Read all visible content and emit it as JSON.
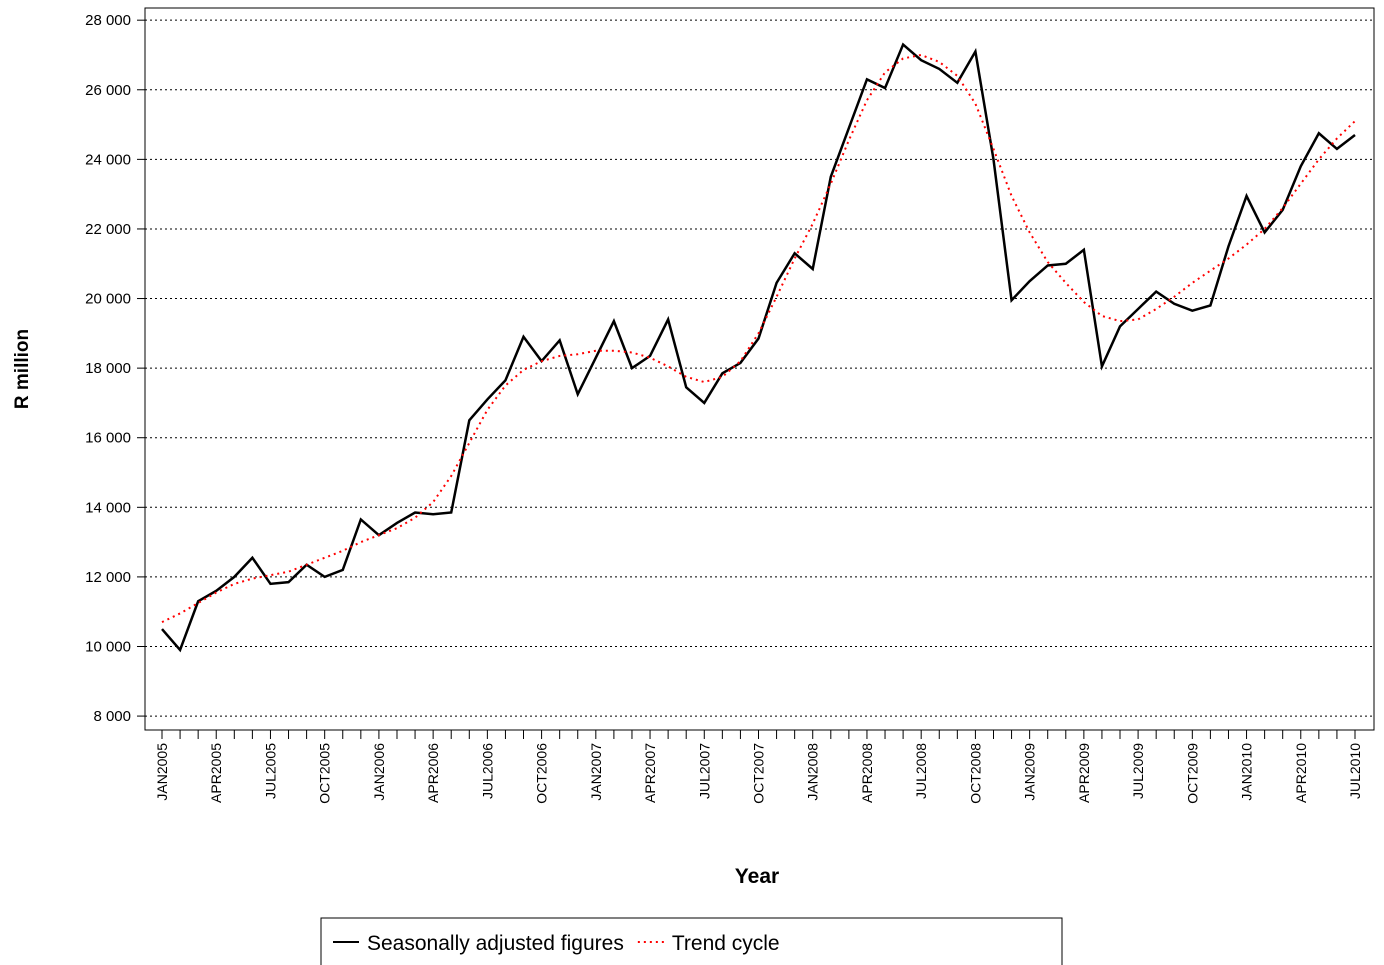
{
  "chart_data": {
    "type": "line",
    "x_label": "Year",
    "y_label": "R million",
    "categories": [
      "JAN2005",
      null,
      null,
      "APR2005",
      null,
      null,
      "JUL2005",
      null,
      null,
      "OCT2005",
      null,
      null,
      "JAN2006",
      null,
      null,
      "APR2006",
      null,
      null,
      "JUL2006",
      null,
      null,
      "OCT2006",
      null,
      null,
      "JAN2007",
      null,
      null,
      "APR2007",
      null,
      null,
      "JUL2007",
      null,
      null,
      "OCT2007",
      null,
      null,
      "JAN2008",
      null,
      null,
      "APR2008",
      null,
      null,
      "JUL2008",
      null,
      null,
      "OCT2008",
      null,
      null,
      "JAN2009",
      null,
      null,
      "APR2009",
      null,
      null,
      "JUL2009",
      null,
      null,
      "OCT2009",
      null,
      null,
      "JAN2010",
      null,
      null,
      "APR2010",
      null,
      null,
      "JUL2010"
    ],
    "series": [
      {
        "name": "Seasonally adjusted figures",
        "color": "#000000",
        "line_style": "solid",
        "values": [
          10500,
          9900,
          11300,
          11600,
          12000,
          12550,
          11800,
          11850,
          12350,
          12000,
          12200,
          13650,
          13200,
          13550,
          13850,
          13800,
          13850,
          16500,
          17100,
          17650,
          18900,
          18200,
          18800,
          17250,
          18300,
          19350,
          18000,
          18350,
          19400,
          17450,
          17000,
          17850,
          18150,
          18850,
          20450,
          21300,
          20850,
          23500,
          24900,
          26300,
          26050,
          27300,
          26850,
          26600,
          26200,
          27100,
          24000,
          19950,
          20500,
          20950,
          21000,
          21400,
          18050,
          19200,
          19700,
          20200,
          19850,
          19650,
          19800,
          21500,
          22950,
          21900,
          22550,
          23800,
          24750,
          24300,
          24700
        ]
      },
      {
        "name": "Trend cycle",
        "color": "#ff0000",
        "line_style": "dotted",
        "values": [
          10700,
          10950,
          11250,
          11550,
          11800,
          11950,
          12050,
          12150,
          12350,
          12550,
          12750,
          13000,
          13200,
          13400,
          13700,
          14150,
          14900,
          15850,
          16800,
          17500,
          17950,
          18200,
          18350,
          18400,
          18500,
          18500,
          18450,
          18300,
          18050,
          17750,
          17600,
          17750,
          18200,
          19000,
          20050,
          21150,
          22150,
          23300,
          24550,
          25700,
          26500,
          26900,
          27000,
          26800,
          26400,
          25600,
          24300,
          22950,
          21900,
          21050,
          20450,
          19900,
          19500,
          19350,
          19400,
          19700,
          20050,
          20450,
          20800,
          21150,
          21550,
          22000,
          22600,
          23300,
          24000,
          24600,
          25100
        ]
      }
    ],
    "ylim": [
      7600,
      28350
    ],
    "yticks": [
      {
        "value": 8000,
        "label": "8 000"
      },
      {
        "value": 10000,
        "label": "10 000"
      },
      {
        "value": 12000,
        "label": "12 000"
      },
      {
        "value": 14000,
        "label": "14 000"
      },
      {
        "value": 16000,
        "label": "16 000"
      },
      {
        "value": 18000,
        "label": "18 000"
      },
      {
        "value": 20000,
        "label": "20 000"
      },
      {
        "value": 22000,
        "label": "22 000"
      },
      {
        "value": 24000,
        "label": "24 000"
      },
      {
        "value": 26000,
        "label": "26 000"
      },
      {
        "value": 28000,
        "label": "28 000"
      }
    ],
    "grid": true,
    "legend_position": "bottom"
  }
}
